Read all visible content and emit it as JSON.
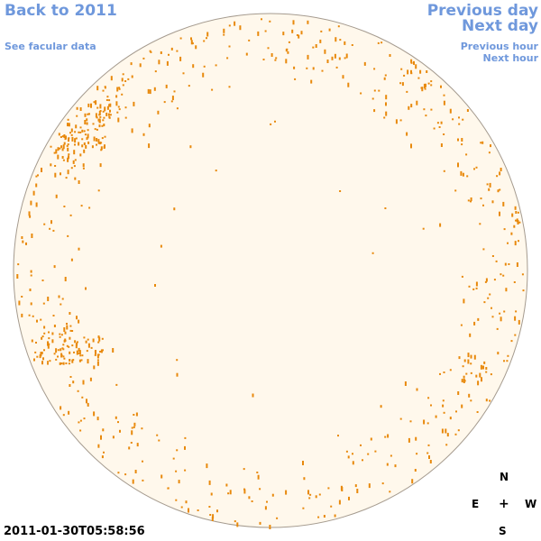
{
  "nav": {
    "back": "Back to 2011",
    "facular": "See facular data",
    "prev_day": "Previous day",
    "next_day": "Next day",
    "prev_hour": "Previous hour",
    "next_hour": "Next hour"
  },
  "timestamp": "2011-01-30T05:58:56",
  "compass": {
    "n": "N",
    "e": "E",
    "center": "+",
    "w": "W",
    "s": "S"
  },
  "colors": {
    "disk_fill": "#fff8ec",
    "disk_stroke": "#a59b8f",
    "facula": "#e8890c",
    "link": "#6f98dc"
  }
}
